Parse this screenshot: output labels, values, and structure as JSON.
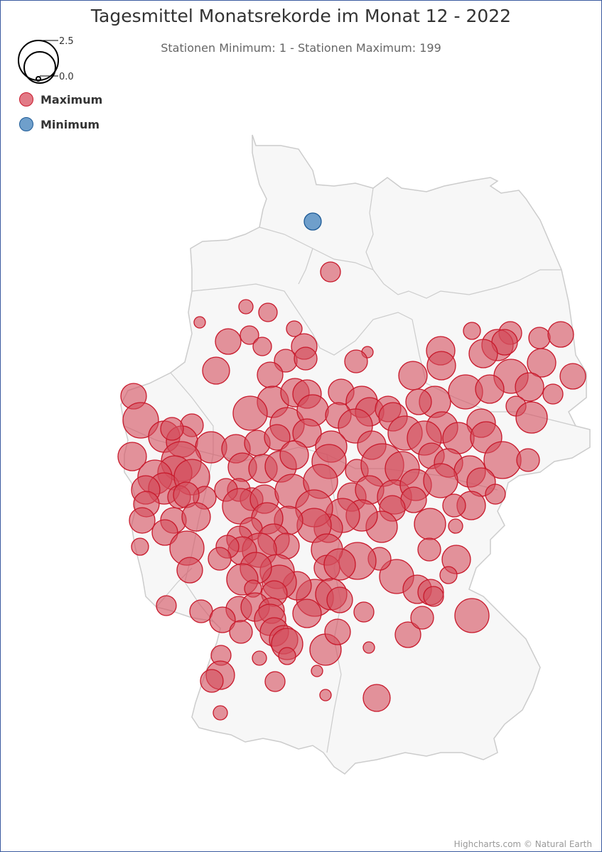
{
  "title": "Tagesmittel Monatsrekorde im Monat 12 - 2022",
  "subtitle": "Stationen Minimum: 1 - Stationen Maximum: 199",
  "bubble_legend": {
    "max_label": "2.5",
    "min_label": "0.0"
  },
  "legend": [
    {
      "label": "Maximum",
      "color": "#e27a86",
      "border": "#c8192b"
    },
    {
      "label": "Minimum",
      "color": "#6f9fcb",
      "border": "#1d5a96"
    }
  ],
  "credit": "Highcharts.com © Natural Earth",
  "colors": {
    "land": "#f7f7f7",
    "border": "#cccccc",
    "max_fill": "#d44c5b",
    "max_stroke": "#c8192b",
    "min_fill": "#6f9fcb",
    "min_stroke": "#1d5a96"
  },
  "chart_data": {
    "type": "bubble-map",
    "series": [
      {
        "name": "Maximum",
        "count": 199
      },
      {
        "name": "Minimum",
        "count": 1
      }
    ],
    "size_range": [
      0.0,
      2.5
    ]
  }
}
